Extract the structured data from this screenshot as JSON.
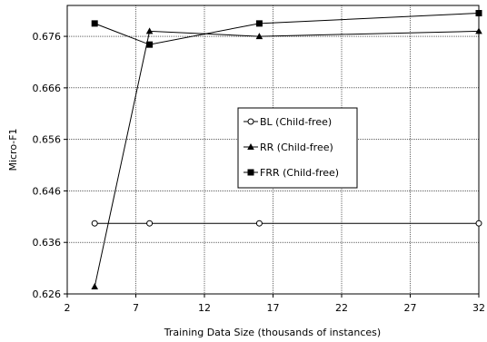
{
  "chart_data": {
    "type": "line",
    "xlabel": "Training Data Size (thousands of instances)",
    "ylabel": "Micro-F1",
    "xlim": [
      2,
      32
    ],
    "ylim": [
      0.626,
      0.682
    ],
    "xticks": [
      2,
      7,
      12,
      17,
      22,
      27,
      32
    ],
    "xtick_labels": [
      "2",
      "7",
      "12",
      "17",
      "22",
      "27",
      "32"
    ],
    "yticks": [
      0.626,
      0.636,
      0.646,
      0.656,
      0.666,
      0.676
    ],
    "ytick_labels": [
      "0.626",
      "0.636",
      "0.646",
      "0.656",
      "0.666",
      "0.676"
    ],
    "grid": true,
    "legend_position": "center-right",
    "series": [
      {
        "name": "BL (Child-free)",
        "marker": "open-circle",
        "x": [
          4,
          8,
          16,
          32
        ],
        "y": [
          0.6397,
          0.6397,
          0.6397,
          0.6397
        ]
      },
      {
        "name": "RR (Child-free)",
        "marker": "filled-triangle",
        "x": [
          4,
          8,
          16,
          32
        ],
        "y": [
          0.6274,
          0.677,
          0.676,
          0.677
        ]
      },
      {
        "name": "FRR (Child-free)",
        "marker": "filled-square",
        "x": [
          4,
          8,
          16,
          32
        ],
        "y": [
          0.6785,
          0.6744,
          0.6785,
          0.6805
        ]
      }
    ]
  }
}
